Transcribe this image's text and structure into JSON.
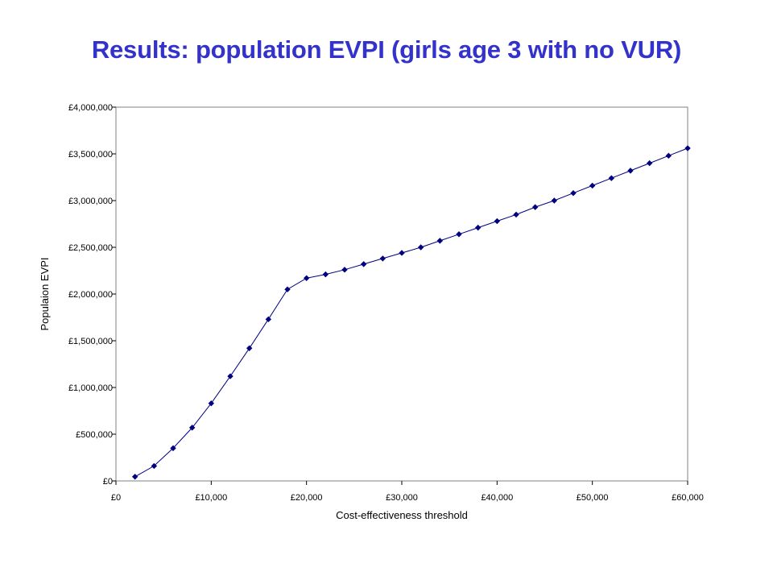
{
  "slide": {
    "title": "Results: population EVPI (girls age 3 with no VUR)"
  },
  "chart_data": {
    "type": "line",
    "title": "",
    "xlabel": "Cost-effectiveness threshold",
    "ylabel": "Populaion EVPI",
    "xlim": [
      0,
      60000
    ],
    "ylim": [
      0,
      4000000
    ],
    "x_tick_labels": [
      "£0",
      "£10,000",
      "£20,000",
      "£30,000",
      "£40,000",
      "£50,000",
      "£60,000"
    ],
    "x_tick_values": [
      0,
      10000,
      20000,
      30000,
      40000,
      50000,
      60000
    ],
    "y_tick_labels": [
      "£0",
      "£500,000",
      "£1,000,000",
      "£1,500,000",
      "£2,000,000",
      "£2,500,000",
      "£3,000,000",
      "£3,500,000",
      "£4,000,000"
    ],
    "y_tick_values": [
      0,
      500000,
      1000000,
      1500000,
      2000000,
      2500000,
      3000000,
      3500000,
      4000000
    ],
    "grid": false,
    "series": [
      {
        "color": "#000080",
        "marker": "diamond",
        "x": [
          2000,
          4000,
          6000,
          8000,
          10000,
          12000,
          14000,
          16000,
          18000,
          20000,
          22000,
          24000,
          26000,
          28000,
          30000,
          32000,
          34000,
          36000,
          38000,
          40000,
          42000,
          44000,
          46000,
          48000,
          50000,
          52000,
          54000,
          56000,
          58000,
          60000
        ],
        "y": [
          45000,
          160000,
          350000,
          570000,
          830000,
          1120000,
          1420000,
          1730000,
          2050000,
          2170000,
          2210000,
          2260000,
          2320000,
          2380000,
          2440000,
          2500000,
          2570000,
          2640000,
          2710000,
          2780000,
          2850000,
          2930000,
          3000000,
          3080000,
          3160000,
          3240000,
          3320000,
          3400000,
          3480000,
          3560000
        ]
      }
    ]
  }
}
